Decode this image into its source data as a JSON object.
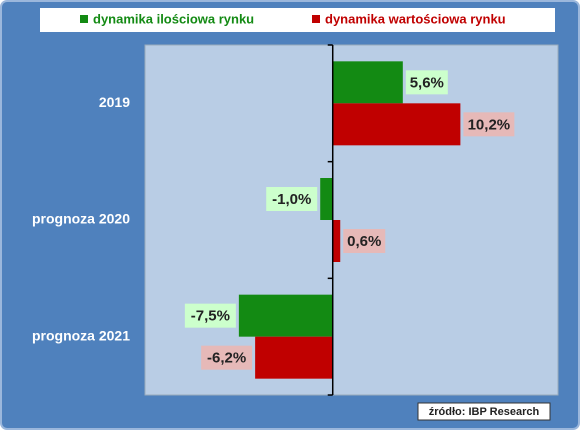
{
  "chart_data": {
    "type": "hbar",
    "categories": [
      "2019",
      "prognoza 2020",
      "prognoza 2021"
    ],
    "series": [
      {
        "name": "dynamika ilościowa rynku",
        "color": "#138a13",
        "label_bg": "#ccffcc",
        "values": [
          5.6,
          -1.0,
          -7.5
        ],
        "value_labels": [
          "5,6%",
          "-1,0%",
          "-7,5%"
        ]
      },
      {
        "name": "dynamika wartościowa rynku",
        "color": "#c00000",
        "label_bg": "#e6b9b8",
        "values": [
          10.2,
          0.6,
          -6.2
        ],
        "value_labels": [
          "10,2%",
          "0,6%",
          "-6,2%"
        ]
      }
    ],
    "xlim": [
      -15,
      18
    ],
    "source": "źródło:  IBP Research"
  }
}
